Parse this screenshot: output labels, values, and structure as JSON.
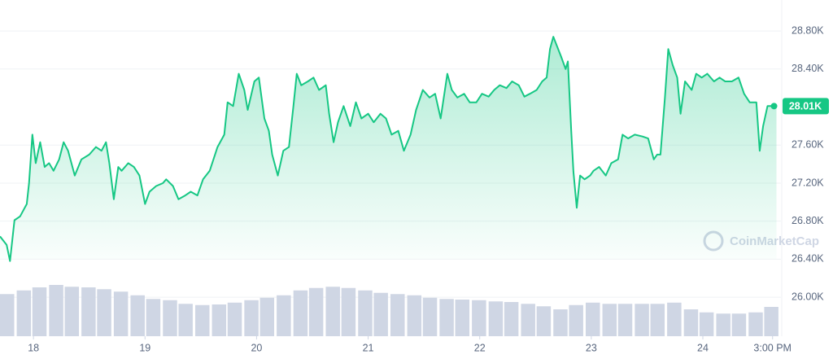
{
  "chart_data": {
    "type": "line",
    "color": "#16c784",
    "grid": true,
    "watermark": "CoinMarketCap",
    "x": [
      17.7,
      17.76,
      17.79,
      17.83,
      17.88,
      17.94,
      17.96,
      17.99,
      18.02,
      18.06,
      18.1,
      18.14,
      18.18,
      18.23,
      18.27,
      18.31,
      18.37,
      18.43,
      18.5,
      18.56,
      18.61,
      18.65,
      18.68,
      18.72,
      18.76,
      18.79,
      18.85,
      18.9,
      18.95,
      19.0,
      19.04,
      19.1,
      19.16,
      19.19,
      19.25,
      19.3,
      19.36,
      19.41,
      19.47,
      19.52,
      19.58,
      19.65,
      19.71,
      19.74,
      19.79,
      19.84,
      19.89,
      19.92,
      19.98,
      20.02,
      20.07,
      20.11,
      20.14,
      20.19,
      20.24,
      20.29,
      20.33,
      20.36,
      20.4,
      20.46,
      20.51,
      20.56,
      20.62,
      20.65,
      20.69,
      20.73,
      20.78,
      20.84,
      20.89,
      20.94,
      21.0,
      21.05,
      21.11,
      21.16,
      21.21,
      21.27,
      21.32,
      21.38,
      21.43,
      21.49,
      21.55,
      21.6,
      21.65,
      21.71,
      21.75,
      21.8,
      21.86,
      21.91,
      21.97,
      22.02,
      22.08,
      22.13,
      22.18,
      22.24,
      22.29,
      22.35,
      22.4,
      22.45,
      22.51,
      22.56,
      22.6,
      22.63,
      22.66,
      22.69,
      22.73,
      22.77,
      22.79,
      22.82,
      22.84,
      22.87,
      22.9,
      22.94,
      22.99,
      23.02,
      23.07,
      23.13,
      23.18,
      23.24,
      23.28,
      23.33,
      23.39,
      23.46,
      23.51,
      23.56,
      23.59,
      23.62,
      23.66,
      23.69,
      23.73,
      23.77,
      23.8,
      23.84,
      23.9,
      23.94,
      23.99,
      24.04,
      24.1,
      24.15,
      24.2,
      24.26,
      24.32,
      24.37,
      24.42,
      24.48,
      24.51,
      24.54,
      24.58,
      24.63,
      24.66
    ],
    "values": [
      26640,
      26550,
      26380,
      26810,
      26850,
      26980,
      27200,
      27710,
      27410,
      27630,
      27370,
      27410,
      27330,
      27450,
      27630,
      27540,
      27280,
      27450,
      27500,
      27580,
      27540,
      27630,
      27410,
      27030,
      27370,
      27330,
      27410,
      27370,
      27280,
      26980,
      27110,
      27170,
      27200,
      27240,
      27170,
      27030,
      27070,
      27110,
      27070,
      27240,
      27330,
      27580,
      27710,
      28050,
      28010,
      28350,
      28180,
      27970,
      28270,
      28310,
      27880,
      27750,
      27500,
      27280,
      27540,
      27580,
      28010,
      28350,
      28230,
      28270,
      28310,
      28180,
      28230,
      27930,
      27630,
      27840,
      28010,
      27800,
      28050,
      27880,
      27930,
      27840,
      27930,
      27880,
      27710,
      27750,
      27540,
      27710,
      27970,
      28180,
      28100,
      28140,
      27880,
      28350,
      28180,
      28100,
      28140,
      28050,
      28050,
      28140,
      28110,
      28180,
      28230,
      28200,
      28270,
      28230,
      28110,
      28140,
      28180,
      28270,
      28310,
      28610,
      28740,
      28650,
      28530,
      28400,
      28480,
      27750,
      27320,
      26940,
      27280,
      27240,
      27280,
      27330,
      27370,
      27280,
      27410,
      27450,
      27710,
      27670,
      27710,
      27690,
      27670,
      27450,
      27500,
      27500,
      28100,
      28610,
      28440,
      28310,
      27930,
      28270,
      28180,
      28350,
      28310,
      28350,
      28270,
      28310,
      28270,
      28270,
      28310,
      28140,
      28050,
      28050,
      27540,
      27800,
      28010,
      28010,
      28010
    ],
    "annotations": [
      {
        "x": 24.66,
        "y": 28010,
        "label": "28.01K"
      }
    ],
    "volume": {
      "axis": "y2",
      "color": "#cfd6e4",
      "x": [
        17.7,
        17.85,
        17.99,
        18.14,
        18.28,
        18.43,
        18.57,
        18.72,
        18.87,
        19.01,
        19.16,
        19.3,
        19.45,
        19.6,
        19.74,
        19.89,
        20.03,
        20.18,
        20.33,
        20.47,
        20.62,
        20.76,
        20.91,
        21.05,
        21.2,
        21.35,
        21.49,
        21.64,
        21.78,
        21.93,
        22.08,
        22.22,
        22.37,
        22.51,
        22.66,
        22.8,
        22.95,
        23.1,
        23.24,
        23.39,
        23.53,
        23.68,
        23.83,
        23.97,
        24.12,
        24.26,
        24.41,
        24.55
      ],
      "values": [
        69,
        75,
        80,
        84,
        81,
        80,
        77,
        73,
        67,
        61,
        59,
        53,
        51,
        52,
        55,
        59,
        63,
        67,
        75,
        79,
        81,
        79,
        75,
        71,
        69,
        67,
        63,
        61,
        60,
        59,
        57,
        56,
        53,
        49,
        44,
        51,
        55,
        53,
        53,
        53,
        53,
        55,
        44,
        39,
        37,
        37,
        39,
        48
      ]
    },
    "xlim": [
      17.7,
      24.7
    ],
    "xticks": [
      18,
      19,
      20,
      21,
      22,
      23,
      24,
      {
        "value": 24.625,
        "label": "3:00 PM"
      }
    ],
    "ylim": [
      25590,
      29126
    ],
    "yticks": [
      {
        "value": 26000,
        "label": "26.00K"
      },
      {
        "value": 26400,
        "label": "26.40K"
      },
      {
        "value": 26800,
        "label": "26.80K"
      },
      {
        "value": 27200,
        "label": "27.20K"
      },
      {
        "value": 27600,
        "label": "27.60K"
      },
      {
        "value": 28400,
        "label": "28.40K"
      },
      {
        "value": 28800,
        "label": "28.80K"
      }
    ],
    "y2lim": [
      0,
      100
    ]
  }
}
